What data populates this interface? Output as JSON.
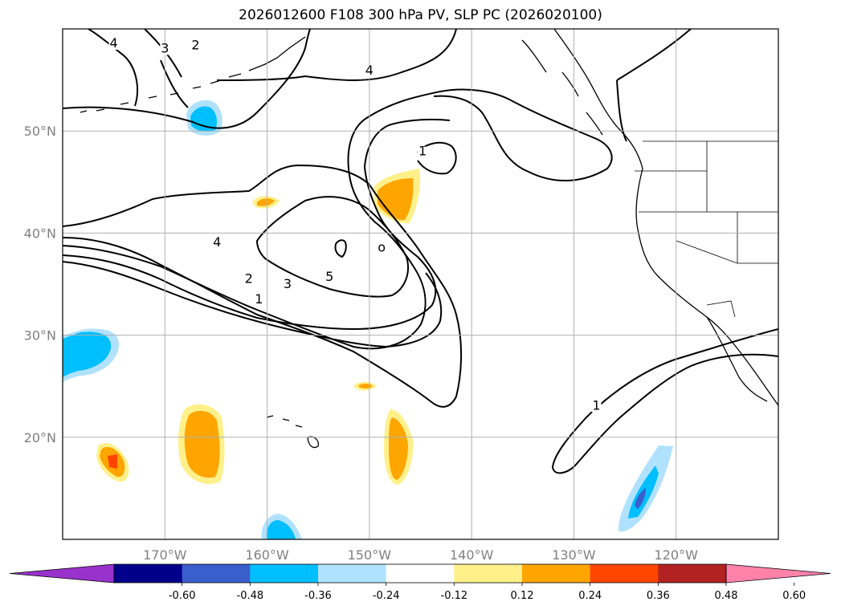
{
  "title": "2026012600 F108 300 hPa PV, SLP PC (2026020100)",
  "chart_data": {
    "type": "map",
    "variable": "300 hPa PV, SLP PC",
    "init": "2026012600",
    "forecast_hour": "F108",
    "valid": "2026020100",
    "lon_range": [
      -180,
      -110
    ],
    "lat_range": [
      10,
      60
    ],
    "lat_ticks": [
      {
        "value": 20,
        "label": "20°N"
      },
      {
        "value": 30,
        "label": "30°N"
      },
      {
        "value": 40,
        "label": "40°N"
      },
      {
        "value": 50,
        "label": "50°N"
      }
    ],
    "lon_ticks": [
      {
        "value": -170,
        "label": "170°W"
      },
      {
        "value": -160,
        "label": "160°W"
      },
      {
        "value": -150,
        "label": "150°W"
      },
      {
        "value": -140,
        "label": "140°W"
      },
      {
        "value": -130,
        "label": "130°W"
      },
      {
        "value": -120,
        "label": "120°W"
      }
    ],
    "grid": true,
    "contour_labels": [
      {
        "text": "4",
        "lon": -175,
        "lat": 58.2
      },
      {
        "text": "3",
        "lon": -170,
        "lat": 57.7
      },
      {
        "text": "2",
        "lon": -167,
        "lat": 58
      },
      {
        "text": "4",
        "lon": -150,
        "lat": 55.5
      },
      {
        "text": "1",
        "lon": -144.8,
        "lat": 47.6
      },
      {
        "text": "4",
        "lon": -164.9,
        "lat": 38.7
      },
      {
        "text": "o",
        "lon": -148.8,
        "lat": 38.2
      },
      {
        "text": "2",
        "lon": -161.8,
        "lat": 35.1
      },
      {
        "text": "3",
        "lon": -158,
        "lat": 34.6
      },
      {
        "text": "5",
        "lon": -153.9,
        "lat": 35.3
      },
      {
        "text": "1",
        "lon": -160.8,
        "lat": 33.1
      },
      {
        "text": "1",
        "lon": -127.8,
        "lat": 22.7
      }
    ],
    "colorbar": {
      "levels": [
        "-0.60",
        "-0.48",
        "-0.36",
        "-0.24",
        "-0.12",
        "0.12",
        "0.24",
        "0.36",
        "0.48",
        "0.60"
      ],
      "colors": [
        "#9932cc",
        "#00008b",
        "#3a5fcd",
        "#00bfff",
        "#b0e2ff",
        "#ffffff",
        "#fff08a",
        "#ffa500",
        "#ff4500",
        "#b22222",
        "#ff82ab"
      ],
      "extend": "both"
    }
  }
}
